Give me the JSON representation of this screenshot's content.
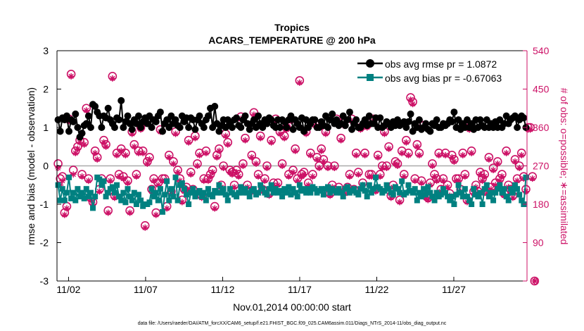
{
  "chart_data": {
    "type": "line",
    "title_line1": "Tropics",
    "title_line2": "ACARS_TEMPERATURE @ 200 hPa",
    "xlabel": "Nov.01,2014 00:00:00 start",
    "ylabel_left": "rmse and bias (model - observation)",
    "ylabel_right": "# of obs: o=possible; ∗=assimilated",
    "footnote": "data file: /Users/raeder/DAI/ATM_forcXX/CAM6_setup/f.e21.FHIST_BGC.f09_025.CAM6assim.011/Diags_NTrS_2014-11/obs_diag_output.nc",
    "x_range_days": [
      0.25,
      30.75
    ],
    "ylim_left": [
      -3,
      3
    ],
    "ylim_right": [
      0,
      540
    ],
    "y_ticks_left": [
      "3",
      "2",
      "1",
      "0",
      "-1",
      "-2",
      "-3"
    ],
    "y_ticks_right": [
      "540",
      "450",
      "360",
      "270",
      "180",
      "90",
      "0"
    ],
    "x_ticks": [
      {
        "label": "11/02",
        "day": 1
      },
      {
        "label": "11/07",
        "day": 6
      },
      {
        "label": "11/12",
        "day": 11
      },
      {
        "label": "11/17",
        "day": 16
      },
      {
        "label": "11/22",
        "day": 21
      },
      {
        "label": "11/27",
        "day": 26
      }
    ],
    "colors": {
      "rmse": "#000000",
      "bias": "#008080",
      "obs": "#cc1166",
      "zero_line": "#aaaaaa"
    },
    "legend": {
      "placement": "top-right",
      "rmse_label": "obs avg rmse pr = 1.0872",
      "bias_label": "obs avg bias pr = -0.67063"
    },
    "series": [
      {
        "name": "obs avg rmse pr",
        "values": [
          1.2,
          0.9,
          1.25,
          1.2,
          1.3,
          0.9,
          1.2,
          1.15,
          1.35,
          1.0,
          0.75,
          0.85,
          1.05,
          1.1,
          1.3,
          1.0,
          1.6,
          1.55,
          1.4,
          1.3,
          1.0,
          1.3,
          1.25,
          1.5,
          1.2,
          1.1,
          1.0,
          1.25,
          1.2,
          1.7,
          1.0,
          1.15,
          1.3,
          1.1,
          0.95,
          1.2,
          1.1,
          1.3,
          1.0,
          1.15,
          1.25,
          1.1,
          1.3,
          1.0,
          1.2,
          1.15,
          1.3,
          1.4,
          0.9,
          1.1,
          1.2,
          1.0,
          1.3,
          1.1,
          1.2,
          1.05,
          1.0,
          1.3,
          1.15,
          1.25,
          1.0,
          1.25,
          1.2,
          0.95,
          1.2,
          1.3,
          1.1,
          1.0,
          1.2,
          1.3,
          1.5,
          1.0,
          1.55,
          1.1,
          0.9,
          1.05,
          1.2,
          1.0,
          1.2,
          1.1,
          1.0,
          1.2,
          1.25,
          1.05,
          1.0,
          1.2,
          1.3,
          1.1,
          0.95,
          1.1,
          1.2,
          1.0,
          1.3,
          1.1,
          1.0,
          1.2,
          1.1,
          1.25,
          1.2,
          1.05,
          1.0,
          1.2,
          1.0,
          1.2,
          1.15,
          1.0,
          1.2,
          1.3,
          0.95,
          1.2,
          1.1,
          1.0,
          1.25,
          0.9,
          1.2,
          1.0,
          1.1,
          1.2,
          1.2,
          1.0,
          1.0,
          1.15,
          1.05,
          1.3,
          1.0,
          1.2,
          1.35,
          1.1,
          1.2,
          1.05,
          1.1,
          1.3,
          1.05,
          1.2,
          1.4,
          0.95,
          1.1,
          1.2,
          1.0,
          1.0,
          1.1,
          1.2,
          1.05,
          1.3,
          1.1,
          1.1,
          1.25,
          1.0,
          1.25,
          1.0,
          1.05,
          1.15,
          1.1,
          1.0,
          1.15,
          1.05,
          1.2,
          1.05,
          1.1,
          1.15,
          1.0,
          1.15,
          1.35,
          0.9,
          1.1,
          1.0,
          1.2,
          0.95,
          1.0,
          1.1,
          0.95,
          0.9,
          1.1,
          1.05,
          1.2,
          1.0,
          1.0,
          1.1,
          1.05,
          1.1,
          1.2,
          1.15,
          1.4,
          1.0,
          1.2,
          0.95,
          1.1,
          1.0,
          1.2,
          1.0,
          1.1,
          0.95,
          1.2,
          1.0,
          1.2,
          1.05,
          1.0,
          1.2,
          1.0,
          1.1,
          1.0,
          1.15,
          1.0,
          1.2,
          1.0,
          1.1,
          1.3,
          1.1,
          1.2,
          1.25,
          1.3,
          1.0,
          1.2,
          1.3,
          1.25,
          1.0
        ]
      },
      {
        "name": "obs avg bias pr",
        "values": [
          -0.5,
          -0.9,
          -0.6,
          -0.9,
          -0.7,
          -0.3,
          -0.85,
          -0.7,
          -0.9,
          -0.6,
          -0.8,
          -0.7,
          -0.85,
          -0.6,
          -0.8,
          -0.7,
          -1.1,
          -0.8,
          -0.3,
          -0.35,
          -0.5,
          -0.4,
          -0.8,
          -0.7,
          -0.6,
          -0.55,
          -0.7,
          -0.5,
          -0.8,
          -0.9,
          -0.7,
          -0.95,
          -0.6,
          -0.8,
          -0.9,
          -0.7,
          -1.0,
          -0.75,
          -0.9,
          -1.05,
          -1.0,
          -1.0,
          -0.95,
          -0.6,
          -0.8,
          -0.7,
          -0.9,
          -0.6,
          -1.2,
          -0.75,
          -0.4,
          -0.9,
          -0.6,
          -0.8,
          -0.3,
          -0.9,
          -0.5,
          -0.45,
          -0.6,
          -0.75,
          -1.0,
          -0.7,
          -0.6,
          -0.8,
          -0.7,
          -0.65,
          -0.8,
          -0.7,
          -0.9,
          -0.6,
          -0.75,
          -0.8,
          -0.65,
          -0.7,
          -0.5,
          -0.7,
          -0.6,
          -0.75,
          -0.9,
          -0.6,
          -0.7,
          -0.75,
          -0.8,
          -0.7,
          -0.55,
          -0.7,
          -0.6,
          -0.7,
          -0.8,
          -0.65,
          -0.6,
          -0.75,
          -0.7,
          -0.5,
          -0.6,
          -0.7,
          -0.75,
          -0.6,
          -0.5,
          -0.7,
          -0.6,
          -0.7,
          -0.65,
          -0.8,
          -0.6,
          -0.7,
          -0.55,
          -0.75,
          -0.6,
          -0.7,
          -0.8,
          -0.5,
          -0.65,
          -0.6,
          -0.7,
          -0.6,
          -0.7,
          -0.55,
          -0.6,
          -0.7,
          -0.65,
          -0.6,
          -0.75,
          -0.6,
          -0.55,
          -0.7,
          -0.6,
          -0.65,
          -0.7,
          -0.6,
          -0.7,
          -0.8,
          -0.6,
          -0.55,
          -0.7,
          -0.65,
          -0.6,
          -0.7,
          -0.75,
          -0.6,
          -0.5,
          -0.65,
          -0.8,
          -0.5,
          -0.7,
          -0.6,
          -0.3,
          -0.55,
          -0.6,
          -0.7,
          -0.65,
          -0.5,
          -0.6,
          -0.7,
          -0.75,
          -0.55,
          -0.6,
          -0.7,
          -0.4,
          -0.75,
          -0.7,
          -0.5,
          -0.65,
          -0.7,
          -0.6,
          -0.9,
          -0.7,
          -0.8,
          -0.6,
          -0.75,
          -0.55,
          -0.7,
          -0.8,
          -0.9,
          -0.7,
          -0.8,
          -0.75,
          -0.6,
          -0.7,
          -0.8,
          -0.9,
          -0.8,
          -1.0,
          -0.75,
          -0.5,
          -0.7,
          -0.8,
          -0.6,
          -0.8,
          -0.9,
          -1.0,
          -0.6,
          -0.75,
          -0.8,
          -0.7,
          -1.0,
          -0.6,
          -0.5,
          -0.8,
          -0.7,
          -0.9,
          -0.7,
          -0.6,
          -0.5,
          -0.7,
          -0.6,
          -0.8,
          -0.9,
          -0.6,
          -0.7,
          -0.5,
          -0.6,
          -0.75,
          -0.9,
          -1.0,
          -0.3
        ]
      },
      {
        "name": "obs possible (circles)",
        "axis": "right",
        "values": [
          275,
          240,
          245,
          160,
          175,
          380,
          485,
          260,
          305,
          315,
          330,
          250,
          325,
          405,
          240,
          195,
          185,
          305,
          290,
          215,
          240,
          330,
          320,
          165,
          240,
          480,
          200,
          300,
          250,
          310,
          245,
          300,
          235,
          165,
          350,
          320,
          250,
          305,
          360,
          305,
          130,
          280,
          290,
          215,
          240,
          160,
          230,
          355,
          240,
          240,
          175,
          295,
          210,
          280,
          350,
          260,
          240,
          190,
          215,
          220,
          330,
          255,
          215,
          340,
          275,
          300,
          200,
          240,
          305,
          240,
          250,
          260,
          175,
          295,
          310,
          225,
          270,
          345,
          325,
          260,
          255,
          225,
          260,
          250,
          385,
          275,
          335,
          225,
          210,
          295,
          395,
          280,
          250,
          340,
          215,
          240,
          270,
          205,
          330,
          230,
          380,
          230,
          350,
          275,
          340,
          360,
          250,
          380,
          260,
          310,
          240,
          470,
          250,
          255,
          350,
          230,
          300,
          250,
          370,
          290,
          270,
          310,
          285,
          350,
          270,
          205,
          225,
          270,
          380,
          220,
          335,
          370,
          210,
          220,
          250,
          380,
          215,
          300,
          255,
          360,
          230,
          300,
          365,
          250,
          250,
          380,
          215,
          295,
          250,
          270,
          350,
          270,
          315,
          200,
          225,
          280,
          275,
          190,
          305,
          250,
          330,
          300,
          430,
          420,
          240,
          320,
          300,
          235,
          365,
          200,
          195,
          230,
          275,
          250,
          240,
          300,
          215,
          240,
          300,
          225,
          205,
          295,
          285,
          240,
          240,
          215,
          300,
          250,
          190,
          360,
          305,
          210,
          225,
          210,
          255,
          240,
          250,
          210,
          290,
          220,
          265,
          230,
          280,
          240,
          250,
          205,
          305,
          225,
          215,
          200,
          285,
          240,
          270,
          300,
          245,
          215,
          360,
          360,
          245,
          0
        ]
      },
      {
        "name": "obs assimilated (asterisks)",
        "axis": "right",
        "values": [
          265,
          225,
          235,
          155,
          170,
          375,
          480,
          250,
          300,
          310,
          325,
          245,
          320,
          400,
          235,
          190,
          180,
          300,
          285,
          210,
          235,
          325,
          315,
          160,
          235,
          475,
          195,
          295,
          245,
          305,
          240,
          295,
          230,
          160,
          345,
          315,
          245,
          300,
          355,
          300,
          125,
          275,
          285,
          210,
          235,
          155,
          225,
          350,
          235,
          235,
          170,
          290,
          205,
          275,
          345,
          255,
          235,
          185,
          210,
          215,
          325,
          250,
          210,
          335,
          270,
          295,
          195,
          235,
          300,
          235,
          245,
          255,
          170,
          290,
          305,
          220,
          265,
          340,
          320,
          255,
          250,
          220,
          255,
          245,
          380,
          270,
          330,
          220,
          205,
          290,
          390,
          275,
          245,
          335,
          210,
          235,
          265,
          200,
          325,
          225,
          375,
          225,
          345,
          270,
          335,
          355,
          245,
          375,
          255,
          305,
          235,
          465,
          245,
          250,
          345,
          225,
          295,
          245,
          365,
          285,
          265,
          305,
          280,
          345,
          265,
          200,
          220,
          265,
          375,
          215,
          330,
          365,
          205,
          215,
          245,
          375,
          210,
          295,
          250,
          355,
          225,
          295,
          360,
          245,
          245,
          375,
          210,
          290,
          245,
          265,
          345,
          265,
          310,
          195,
          220,
          275,
          270,
          185,
          300,
          245,
          325,
          295,
          425,
          415,
          235,
          315,
          295,
          230,
          360,
          195,
          190,
          225,
          270,
          245,
          235,
          295,
          210,
          235,
          295,
          220,
          200,
          290,
          280,
          235,
          235,
          210,
          295,
          245,
          185,
          355,
          300,
          205,
          220,
          205,
          250,
          235,
          245,
          205,
          285,
          215,
          260,
          225,
          275,
          235,
          245,
          200,
          300,
          220,
          210,
          195,
          280,
          235,
          265,
          295,
          240,
          210,
          355,
          355,
          240,
          0
        ]
      }
    ]
  }
}
